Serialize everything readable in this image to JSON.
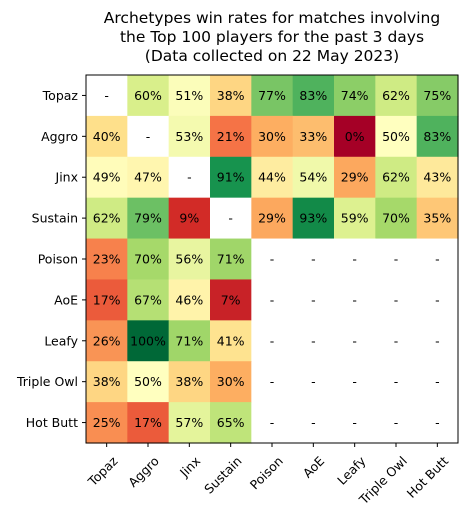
{
  "chart_data": {
    "type": "heatmap",
    "title_lines": [
      "Archetypes win rates for matches involving",
      "the Top 100 players for the past 3 days",
      "(Data collected on 22 May 2023)"
    ],
    "rows": [
      "Topaz",
      "Aggro",
      "Jinx",
      "Sustain",
      "Poison",
      "AoE",
      "Leafy",
      "Triple Owl",
      "Hot Butt"
    ],
    "columns": [
      "Topaz",
      "Aggro",
      "Jinx",
      "Sustain",
      "Poison",
      "AoE",
      "Leafy",
      "Triple Owl",
      "Hot Butt"
    ],
    "values": [
      [
        null,
        60,
        51,
        38,
        77,
        83,
        74,
        62,
        75
      ],
      [
        40,
        null,
        53,
        21,
        30,
        33,
        0,
        50,
        83
      ],
      [
        49,
        47,
        null,
        91,
        44,
        54,
        29,
        62,
        43
      ],
      [
        62,
        79,
        9,
        null,
        29,
        93,
        59,
        70,
        35
      ],
      [
        23,
        70,
        56,
        71,
        null,
        null,
        null,
        null,
        null
      ],
      [
        17,
        67,
        46,
        7,
        null,
        null,
        null,
        null,
        null
      ],
      [
        26,
        100,
        71,
        41,
        null,
        null,
        null,
        null,
        null
      ],
      [
        38,
        50,
        38,
        30,
        null,
        null,
        null,
        null,
        null
      ],
      [
        25,
        17,
        57,
        65,
        null,
        null,
        null,
        null,
        null
      ]
    ],
    "labels": [
      [
        "-",
        "60%",
        "51%",
        "38%",
        "77%",
        "83%",
        "74%",
        "62%",
        "75%"
      ],
      [
        "40%",
        "-",
        "53%",
        "21%",
        "30%",
        "33%",
        "0%",
        "50%",
        "83%"
      ],
      [
        "49%",
        "47%",
        "-",
        "91%",
        "44%",
        "54%",
        "29%",
        "62%",
        "43%"
      ],
      [
        "62%",
        "79%",
        "9%",
        "-",
        "29%",
        "93%",
        "59%",
        "70%",
        "35%"
      ],
      [
        "23%",
        "70%",
        "56%",
        "71%",
        "-",
        "-",
        "-",
        "-",
        "-"
      ],
      [
        "17%",
        "67%",
        "46%",
        "7%",
        "-",
        "-",
        "-",
        "-",
        "-"
      ],
      [
        "26%",
        "100%",
        "71%",
        "41%",
        "-",
        "-",
        "-",
        "-",
        "-"
      ],
      [
        "38%",
        "50%",
        "38%",
        "30%",
        "-",
        "-",
        "-",
        "-",
        "-"
      ],
      [
        "25%",
        "17%",
        "57%",
        "65%",
        "-",
        "-",
        "-",
        "-",
        "-"
      ]
    ],
    "colormap": "RdYlGn",
    "value_range": [
      0,
      100
    ],
    "grid": false,
    "legend": "none"
  }
}
